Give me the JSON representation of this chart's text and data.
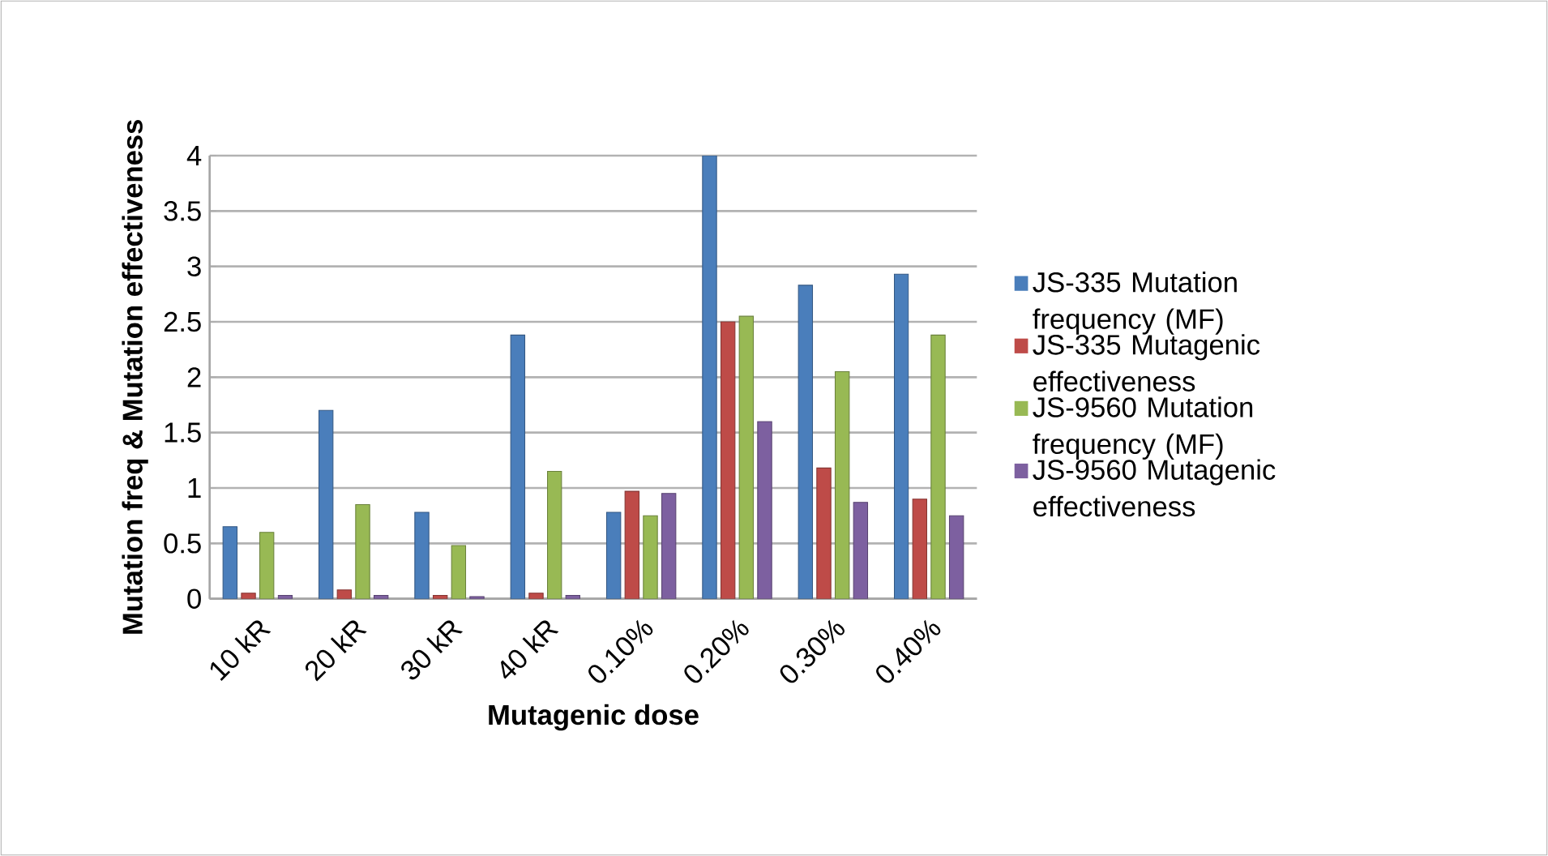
{
  "chart_data": {
    "type": "bar",
    "xlabel": "Mutagenic dose",
    "ylabel": "Mutation freq & Mutation effectiveness",
    "categories": [
      "10 kR",
      "20 kR",
      "30 kR",
      "40 kR",
      "0.10%",
      "0.20%",
      "0.30%",
      "0.40%"
    ],
    "series": [
      {
        "name": "JS-335 Mutation frequency (MF)",
        "color": "#4a7ebb",
        "values": [
          0.65,
          1.7,
          0.78,
          2.38,
          0.78,
          4.0,
          2.83,
          2.93
        ]
      },
      {
        "name": "JS-335 Mutagenic effectiveness",
        "color": "#be4b48",
        "values": [
          0.05,
          0.08,
          0.03,
          0.05,
          0.97,
          2.5,
          1.18,
          0.9
        ]
      },
      {
        "name": "JS-9560 Mutation frequency (MF)",
        "color": "#98b954",
        "values": [
          0.6,
          0.85,
          0.48,
          1.15,
          0.75,
          2.55,
          2.05,
          2.38
        ]
      },
      {
        "name": "JS-9560 Mutagenic effectiveness",
        "color": "#7d60a0",
        "values": [
          0.03,
          0.03,
          0.02,
          0.03,
          0.95,
          1.6,
          0.87,
          0.75
        ]
      }
    ],
    "ylim": [
      0,
      4
    ],
    "yticks": [
      0,
      0.5,
      1,
      1.5,
      2,
      2.5,
      3,
      3.5,
      4
    ],
    "grid": "y",
    "legend": "right"
  }
}
